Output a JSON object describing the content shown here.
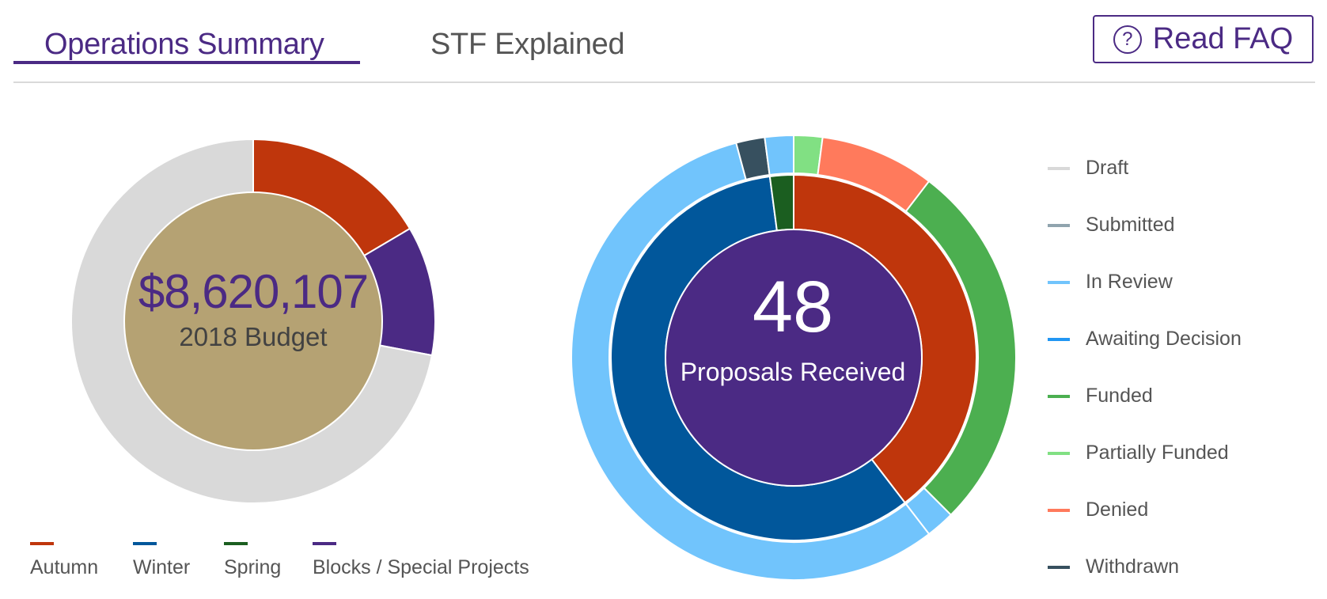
{
  "tabs": [
    {
      "label": "Operations Summary",
      "active": true
    },
    {
      "label": "STF Explained",
      "active": false
    }
  ],
  "faq_button": {
    "label": "Read FAQ",
    "icon": "question-circle-icon"
  },
  "budget": {
    "amount": "$8,620,107",
    "caption": "2018 Budget"
  },
  "proposals": {
    "count": "48",
    "caption": "Proposals Received"
  },
  "colors": {
    "brand_purple": "#4b2a84",
    "gold": "#b5a273",
    "autumn": "#bf360c",
    "winter": "#01579b",
    "spring": "#1b5e20",
    "blocks": "#4b2a84",
    "draft": "#d9d9d9",
    "submitted": "#90a4ae",
    "in_review": "#71c4fc",
    "awaiting_decision": "#2196f3",
    "funded": "#4caf50",
    "partially_funded": "#81e083",
    "denied": "#ff7a5c",
    "withdrawn": "#37505f"
  },
  "chart_data": [
    {
      "type": "pie",
      "variant": "donut",
      "series": [
        {
          "name": "",
          "categories": [
            "Autumn",
            "Blocks / Special Projects",
            ""
          ],
          "values": [
            0.165,
            0.115,
            0.72
          ],
          "colors": [
            "#bf360c",
            "#4b2a84",
            "#d9d9d9"
          ]
        }
      ],
      "center_text": [
        "$8,620,107",
        "2018 Budget"
      ],
      "legend": {
        "position": "bottom",
        "entries": [
          {
            "label": "Autumn",
            "color": "#bf360c"
          },
          {
            "label": "Winter",
            "color": "#01579b"
          },
          {
            "label": "Spring",
            "color": "#1b5e20"
          },
          {
            "label": "Blocks / Special Projects",
            "color": "#4b2a84"
          }
        ]
      }
    },
    {
      "type": "pie",
      "variant": "nested-donut",
      "series": [
        {
          "name": "",
          "ring": "inner",
          "categories": [
            "Autumn",
            "Winter",
            "Spring"
          ],
          "values": [
            19,
            28,
            1
          ],
          "colors": [
            "#bf360c",
            "#01579b",
            "#1b5e20"
          ]
        },
        {
          "name": "",
          "ring": "outer",
          "categories": [
            "Partially Funded",
            "Denied",
            "Funded",
            "In Review",
            "In Review",
            "Withdrawn",
            "In Review"
          ],
          "values": [
            1,
            4,
            13,
            1,
            27,
            1,
            1
          ],
          "colors": [
            "#81e083",
            "#ff7a5c",
            "#4caf50",
            "#71c4fc",
            "#71c4fc",
            "#37505f",
            "#71c4fc"
          ]
        }
      ],
      "center_text": [
        "48",
        "Proposals Received"
      ],
      "legend": {
        "position": "right",
        "entries": [
          {
            "label": "Draft",
            "color": "#d9d9d9"
          },
          {
            "label": "Submitted",
            "color": "#90a4ae"
          },
          {
            "label": "In Review",
            "color": "#71c4fc"
          },
          {
            "label": "Awaiting Decision",
            "color": "#2196f3"
          },
          {
            "label": "Funded",
            "color": "#4caf50"
          },
          {
            "label": "Partially Funded",
            "color": "#81e083"
          },
          {
            "label": "Denied",
            "color": "#ff7a5c"
          },
          {
            "label": "Withdrawn",
            "color": "#37505f"
          }
        ]
      }
    }
  ]
}
